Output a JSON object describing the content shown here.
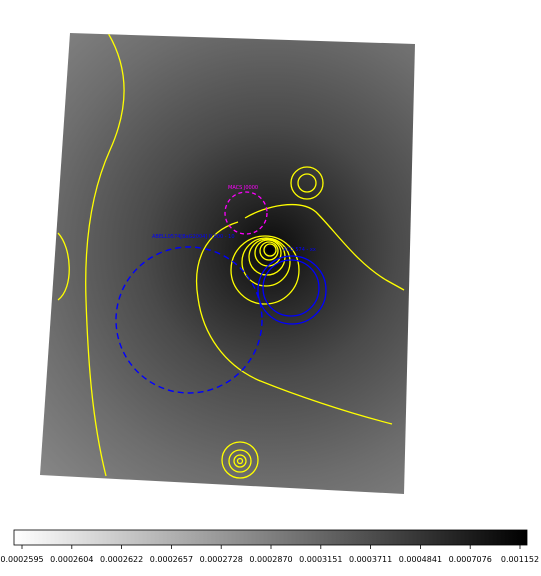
{
  "colors": {
    "contour": "#ffff00",
    "region_blue": "#0000ff",
    "region_magenta": "#ff00ff",
    "image_light": "#8e8e8e",
    "image_dark": "#1a1a1a",
    "background": "#ffffff"
  },
  "regions": {
    "magenta_label": "MACS J0000",
    "blue_dashed_label": "ABELL0574[BaG2004] 0.000 - 10",
    "blue_solid_label": "ACO 574 - xx"
  },
  "colorbar": {
    "min": 0.0002595,
    "max": 0.001152,
    "ticks": [
      "0.0002595",
      "0.0002604",
      "0.0002622",
      "0.0002657",
      "0.0002728",
      "0.0002870",
      "0.0003151",
      "0.0003711",
      "0.0004841",
      "0.0007076",
      "0.001152"
    ]
  }
}
